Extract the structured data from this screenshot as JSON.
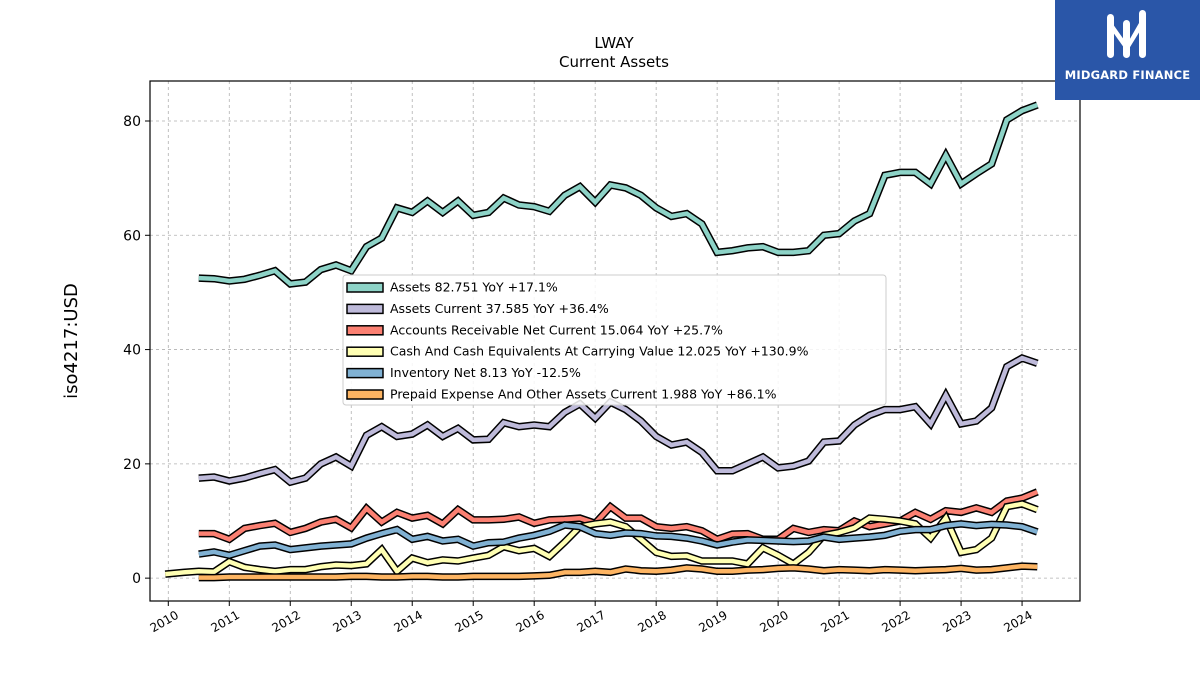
{
  "brand": {
    "name": "MIDGARD FINANCE",
    "color": "#2a56a8"
  },
  "chart_data": {
    "type": "line",
    "title": "LWAY",
    "subtitle": "Current  Assets",
    "ylabel": "iso4217:USD",
    "xlabel": "",
    "xlim": [
      2009.7,
      2024.95
    ],
    "ylim": [
      -4,
      87
    ],
    "yticks": [
      0,
      20,
      40,
      60,
      80
    ],
    "xticks": [
      2010,
      2011,
      2012,
      2013,
      2014,
      2015,
      2016,
      2017,
      2018,
      2019,
      2020,
      2021,
      2022,
      2023,
      2024
    ],
    "grid": true,
    "legend_position": "center",
    "series": [
      {
        "name": "Assets",
        "legend": "Assets  82.751 YoY +17.1%",
        "color": "#8dd3c7",
        "x": [
          2010.5,
          2010.75,
          2011.0,
          2011.25,
          2011.5,
          2011.75,
          2012.0,
          2012.25,
          2012.5,
          2012.75,
          2013.0,
          2013.25,
          2013.5,
          2013.75,
          2014.0,
          2014.25,
          2014.5,
          2014.75,
          2015.0,
          2015.25,
          2015.5,
          2015.75,
          2016.0,
          2016.25,
          2016.5,
          2016.75,
          2017.0,
          2017.25,
          2017.5,
          2017.75,
          2018.0,
          2018.25,
          2018.5,
          2018.75,
          2019.0,
          2019.25,
          2019.5,
          2019.75,
          2020.0,
          2020.25,
          2020.5,
          2020.75,
          2021.0,
          2021.25,
          2021.5,
          2021.75,
          2022.0,
          2022.25,
          2022.5,
          2022.75,
          2023.0,
          2023.25,
          2023.5,
          2023.75,
          2024.0,
          2024.25
        ],
        "values": [
          52.5,
          52.4,
          52.0,
          52.3,
          53.0,
          53.8,
          51.5,
          51.8,
          54.0,
          54.8,
          53.8,
          58.0,
          59.5,
          64.8,
          64.0,
          66.0,
          64.0,
          66.0,
          63.5,
          64.0,
          66.5,
          65.3,
          65.0,
          64.2,
          67.0,
          68.5,
          65.8,
          68.8,
          68.3,
          67.0,
          64.8,
          63.3,
          63.8,
          62.0,
          57.0,
          57.3,
          57.8,
          58.0,
          57.0,
          57.0,
          57.3,
          60.0,
          60.3,
          62.5,
          63.8,
          70.5,
          71.0,
          71.0,
          69.0,
          74.0,
          69.0,
          70.8,
          72.5,
          80.2,
          81.8,
          82.8
        ]
      },
      {
        "name": "Assets Current",
        "legend": "Assets Current  37.585 YoY +36.4%",
        "color": "#bebada",
        "x": [
          2010.5,
          2010.75,
          2011.0,
          2011.25,
          2011.5,
          2011.75,
          2012.0,
          2012.25,
          2012.5,
          2012.75,
          2013.0,
          2013.25,
          2013.5,
          2013.75,
          2014.0,
          2014.25,
          2014.5,
          2014.75,
          2015.0,
          2015.25,
          2015.5,
          2015.75,
          2016.0,
          2016.25,
          2016.5,
          2016.75,
          2017.0,
          2017.25,
          2017.5,
          2017.75,
          2018.0,
          2018.25,
          2018.5,
          2018.75,
          2019.0,
          2019.25,
          2019.5,
          2019.75,
          2020.0,
          2020.25,
          2020.5,
          2020.75,
          2021.0,
          2021.25,
          2021.5,
          2021.75,
          2022.0,
          2022.25,
          2022.5,
          2022.75,
          2023.0,
          2023.25,
          2023.5,
          2023.75,
          2024.0,
          2024.25
        ],
        "values": [
          17.5,
          17.7,
          17.0,
          17.5,
          18.3,
          19.0,
          16.8,
          17.5,
          20.0,
          21.2,
          19.6,
          25.0,
          26.5,
          24.8,
          25.2,
          26.8,
          24.8,
          26.2,
          24.2,
          24.3,
          27.2,
          26.5,
          26.8,
          26.5,
          29.0,
          30.5,
          28.0,
          30.8,
          29.5,
          27.5,
          24.8,
          23.3,
          23.8,
          22.0,
          18.8,
          18.8,
          20.0,
          21.2,
          19.3,
          19.6,
          20.5,
          23.8,
          24.0,
          26.8,
          28.5,
          29.5,
          29.5,
          30.0,
          27.0,
          32.0,
          27.0,
          27.5,
          29.8,
          37.0,
          38.5,
          37.6
        ]
      },
      {
        "name": "Accounts Receivable Net Current",
        "legend": "Accounts Receivable Net Current  15.064 YoY +25.7%",
        "color": "#fb8072",
        "x": [
          2010.5,
          2010.75,
          2011.0,
          2011.25,
          2011.5,
          2011.75,
          2012.0,
          2012.25,
          2012.5,
          2012.75,
          2013.0,
          2013.25,
          2013.5,
          2013.75,
          2014.0,
          2014.25,
          2014.5,
          2014.75,
          2015.0,
          2015.25,
          2015.5,
          2015.75,
          2016.0,
          2016.25,
          2016.5,
          2016.75,
          2017.0,
          2017.25,
          2017.5,
          2017.75,
          2018.0,
          2018.25,
          2018.5,
          2018.75,
          2019.0,
          2019.25,
          2019.5,
          2019.75,
          2020.0,
          2020.25,
          2020.5,
          2020.75,
          2021.0,
          2021.25,
          2021.5,
          2021.75,
          2022.0,
          2022.25,
          2022.5,
          2022.75,
          2023.0,
          2023.25,
          2023.5,
          2023.75,
          2024.0,
          2024.25
        ],
        "values": [
          7.8,
          7.8,
          6.8,
          8.7,
          9.2,
          9.6,
          8.0,
          8.7,
          9.8,
          10.3,
          8.8,
          12.2,
          9.8,
          11.5,
          10.5,
          11.0,
          9.5,
          12.0,
          10.2,
          10.2,
          10.3,
          10.7,
          9.6,
          10.2,
          10.3,
          10.5,
          9.6,
          12.5,
          10.5,
          10.5,
          9.0,
          8.7,
          9.0,
          8.3,
          6.8,
          7.7,
          7.8,
          6.8,
          6.8,
          8.7,
          8.0,
          8.5,
          8.3,
          10.0,
          9.0,
          9.5,
          10.0,
          11.5,
          10.3,
          11.8,
          11.5,
          12.3,
          11.5,
          13.5,
          14.0,
          15.1
        ]
      },
      {
        "name": "Cash And Cash Equivalents At Carrying Value",
        "legend": "Cash And Cash Equivalents At Carrying Value  12.025 YoY +130.9%",
        "color": "#ffffb3",
        "x": [
          2009.95,
          2010.25,
          2010.5,
          2010.75,
          2011.0,
          2011.25,
          2011.5,
          2011.75,
          2012.0,
          2012.25,
          2012.5,
          2012.75,
          2013.0,
          2013.25,
          2013.5,
          2013.75,
          2014.0,
          2014.25,
          2014.5,
          2014.75,
          2015.0,
          2015.25,
          2015.5,
          2015.75,
          2016.0,
          2016.25,
          2016.5,
          2016.75,
          2017.0,
          2017.25,
          2017.5,
          2017.75,
          2018.0,
          2018.25,
          2018.5,
          2018.75,
          2019.0,
          2019.25,
          2019.5,
          2019.75,
          2020.0,
          2020.25,
          2020.5,
          2020.75,
          2021.0,
          2021.25,
          2021.5,
          2021.75,
          2022.0,
          2022.25,
          2022.5,
          2022.75,
          2023.0,
          2023.25,
          2023.5,
          2023.75,
          2024.0,
          2024.25
        ],
        "values": [
          0.7,
          1.0,
          1.2,
          1.1,
          2.9,
          1.9,
          1.5,
          1.2,
          1.5,
          1.5,
          2.0,
          2.3,
          2.2,
          2.5,
          5.0,
          1.2,
          3.5,
          2.7,
          3.2,
          3.0,
          3.5,
          4.0,
          5.5,
          4.8,
          5.2,
          3.8,
          6.3,
          9.0,
          9.5,
          9.8,
          9.0,
          6.8,
          4.5,
          3.8,
          3.9,
          3.0,
          3.0,
          3.0,
          2.5,
          5.3,
          4.0,
          2.5,
          4.5,
          7.5,
          8.0,
          8.8,
          10.5,
          10.3,
          10.0,
          9.5,
          7.0,
          10.5,
          4.5,
          5.0,
          7.0,
          12.5,
          13.0,
          12.0
        ]
      },
      {
        "name": "Inventory Net",
        "legend": "Inventory Net  8.13 YoY -12.5%",
        "color": "#80b1d3",
        "x": [
          2010.5,
          2010.75,
          2011.0,
          2011.25,
          2011.5,
          2011.75,
          2012.0,
          2012.25,
          2012.5,
          2012.75,
          2013.0,
          2013.25,
          2013.5,
          2013.75,
          2014.0,
          2014.25,
          2014.5,
          2014.75,
          2015.0,
          2015.25,
          2015.5,
          2015.75,
          2016.0,
          2016.25,
          2016.5,
          2016.75,
          2017.0,
          2017.25,
          2017.5,
          2017.75,
          2018.0,
          2018.25,
          2018.5,
          2018.75,
          2019.0,
          2019.25,
          2019.5,
          2019.75,
          2020.0,
          2020.25,
          2020.5,
          2020.75,
          2021.0,
          2021.25,
          2021.5,
          2021.75,
          2022.0,
          2022.25,
          2022.5,
          2022.75,
          2023.0,
          2023.25,
          2023.5,
          2023.75,
          2024.0,
          2024.25
        ],
        "values": [
          4.2,
          4.6,
          4.0,
          4.8,
          5.6,
          5.8,
          5.0,
          5.3,
          5.6,
          5.8,
          6.0,
          7.0,
          7.8,
          8.5,
          6.8,
          7.3,
          6.5,
          6.8,
          5.6,
          6.2,
          6.3,
          7.0,
          7.5,
          8.2,
          9.3,
          9.0,
          7.8,
          7.5,
          7.9,
          7.8,
          7.4,
          7.3,
          7.0,
          6.5,
          5.8,
          6.3,
          6.7,
          6.6,
          6.5,
          6.4,
          6.5,
          7.2,
          6.8,
          7.0,
          7.2,
          7.5,
          8.2,
          8.5,
          8.5,
          9.2,
          9.5,
          9.2,
          9.4,
          9.3,
          9.0,
          8.1
        ]
      },
      {
        "name": "Prepaid Expense And Other Assets Current",
        "legend": "Prepaid Expense And Other Assets Current  1.988 YoY +86.1%",
        "color": "#fdb462",
        "x": [
          2010.5,
          2010.75,
          2011.0,
          2011.25,
          2011.5,
          2011.75,
          2012.0,
          2012.25,
          2012.5,
          2012.75,
          2013.0,
          2013.25,
          2013.5,
          2013.75,
          2014.0,
          2014.25,
          2014.5,
          2014.75,
          2015.0,
          2015.25,
          2015.5,
          2015.75,
          2016.0,
          2016.25,
          2016.5,
          2016.75,
          2017.0,
          2017.25,
          2017.5,
          2017.75,
          2018.0,
          2018.25,
          2018.5,
          2018.75,
          2019.0,
          2019.25,
          2019.5,
          2019.75,
          2020.0,
          2020.25,
          2020.5,
          2020.75,
          2021.0,
          2021.25,
          2021.5,
          2021.75,
          2022.0,
          2022.25,
          2022.5,
          2022.75,
          2023.0,
          2023.25,
          2023.5,
          2023.75,
          2024.0,
          2024.25
        ],
        "values": [
          0.1,
          0.1,
          0.2,
          0.2,
          0.2,
          0.2,
          0.2,
          0.2,
          0.2,
          0.2,
          0.3,
          0.3,
          0.2,
          0.2,
          0.3,
          0.3,
          0.2,
          0.2,
          0.3,
          0.3,
          0.3,
          0.3,
          0.4,
          0.5,
          1.0,
          1.0,
          1.2,
          1.0,
          1.6,
          1.3,
          1.2,
          1.4,
          1.8,
          1.6,
          1.2,
          1.2,
          1.4,
          1.5,
          1.7,
          1.8,
          1.6,
          1.3,
          1.5,
          1.4,
          1.3,
          1.5,
          1.4,
          1.3,
          1.4,
          1.5,
          1.7,
          1.4,
          1.5,
          1.8,
          2.1,
          2.0
        ]
      }
    ]
  }
}
